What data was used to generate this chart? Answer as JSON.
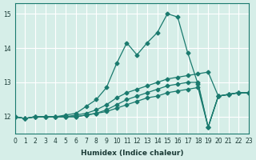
{
  "xlabel": "Humidex (Indice chaleur)",
  "ylabel": "",
  "bg_color": "#d6eee8",
  "line_color": "#1a7a6e",
  "grid_color": "#ffffff",
  "xlim": [
    0,
    23
  ],
  "ylim": [
    11.5,
    15.3
  ],
  "yticks": [
    12,
    13,
    14,
    15
  ],
  "xticks": [
    0,
    1,
    2,
    3,
    4,
    5,
    6,
    7,
    8,
    9,
    10,
    11,
    12,
    13,
    14,
    15,
    16,
    17,
    18,
    19,
    20,
    21,
    22,
    23
  ],
  "lines": [
    [
      12.0,
      11.95,
      12.0,
      12.0,
      12.0,
      12.05,
      12.1,
      12.3,
      12.5,
      12.85,
      13.55,
      14.15,
      13.8,
      14.15,
      14.45,
      15.0,
      14.9,
      13.85,
      12.95,
      11.7,
      12.6,
      12.65,
      12.7,
      12.7
    ],
    [
      12.0,
      11.95,
      12.0,
      12.0,
      12.0,
      12.0,
      12.05,
      12.1,
      12.2,
      12.35,
      12.55,
      12.7,
      12.8,
      12.9,
      13.0,
      13.1,
      13.15,
      13.2,
      13.25,
      13.3,
      12.6,
      12.65,
      12.7,
      12.7
    ],
    [
      12.0,
      11.95,
      12.0,
      12.0,
      12.0,
      12.0,
      12.0,
      12.05,
      12.1,
      12.2,
      12.35,
      12.5,
      12.6,
      12.7,
      12.8,
      12.9,
      12.95,
      13.0,
      13.0,
      11.7,
      12.6,
      12.65,
      12.7,
      12.7
    ],
    [
      12.0,
      11.95,
      12.0,
      12.0,
      12.0,
      12.0,
      12.0,
      12.05,
      12.1,
      12.15,
      12.25,
      12.35,
      12.45,
      12.55,
      12.6,
      12.7,
      12.75,
      12.8,
      12.85,
      11.7,
      12.6,
      12.65,
      12.7,
      12.7
    ]
  ]
}
